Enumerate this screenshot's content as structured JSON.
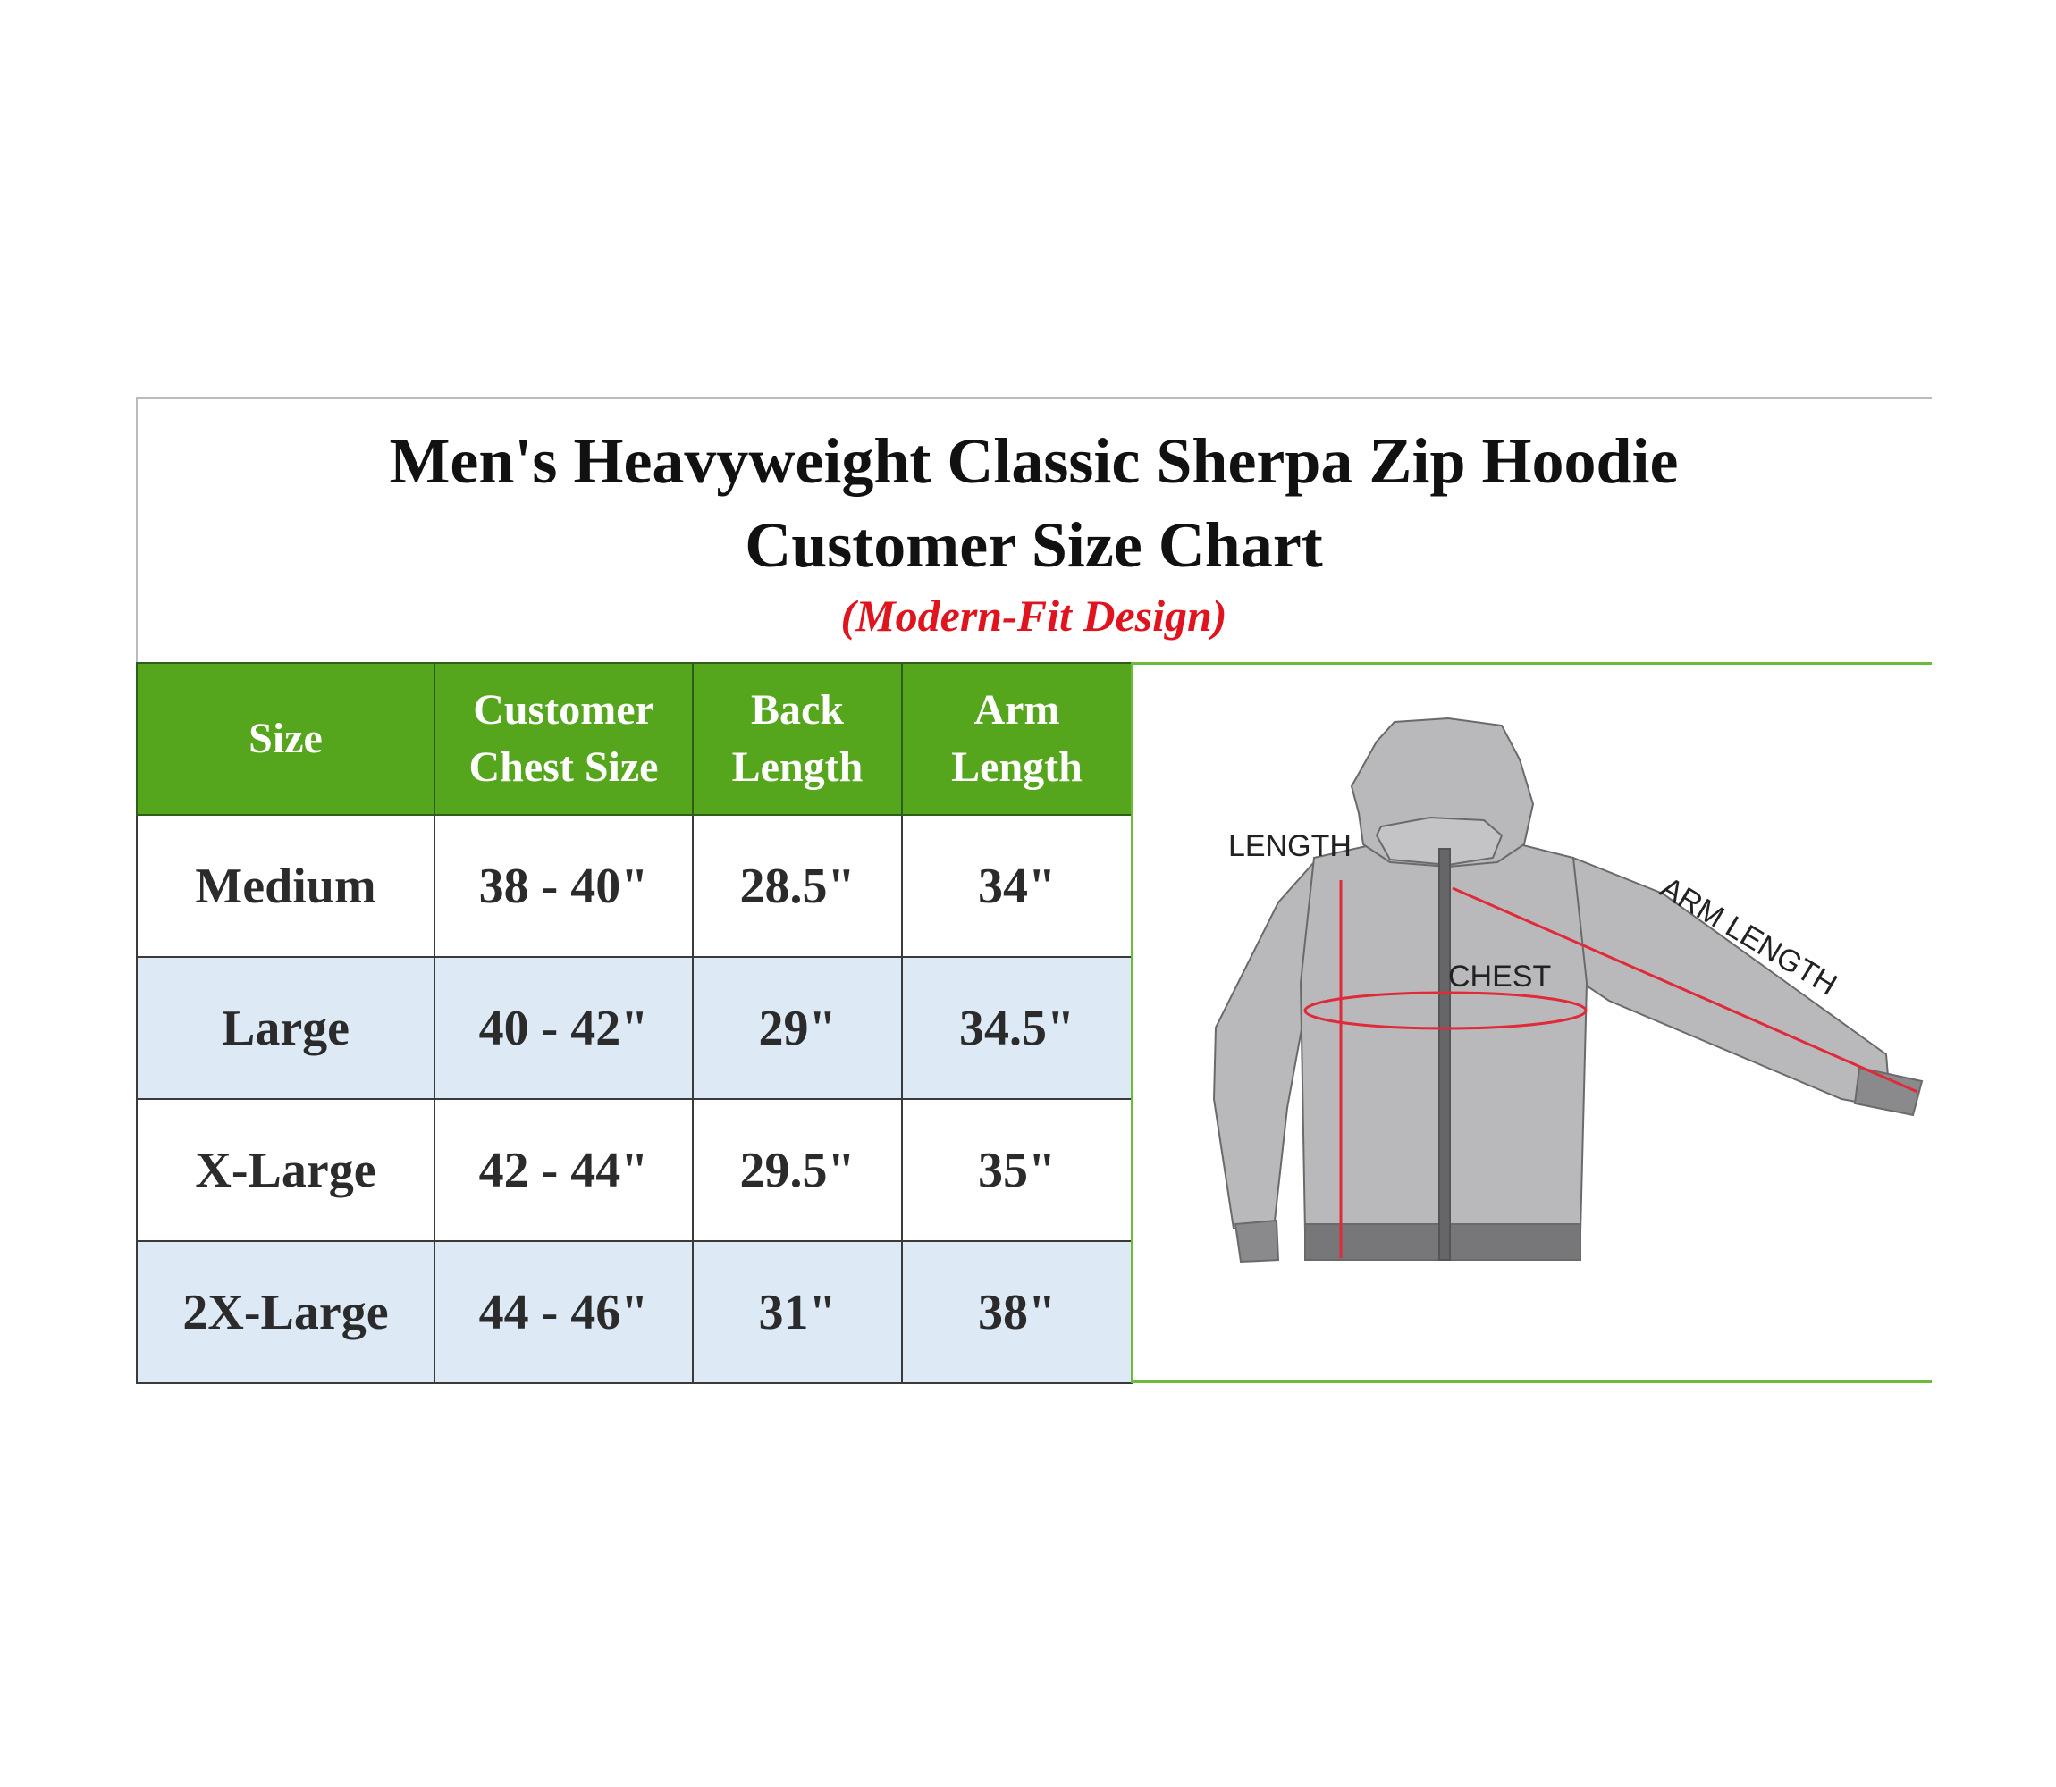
{
  "title_line1": "Men's Heavyweight Classic Sherpa Zip Hoodie",
  "title_line2": "Customer Size Chart",
  "subtitle": "(Modern-Fit Design)",
  "colors": {
    "header_green": "#55a51d",
    "alt_row": "#dde9f5",
    "subtitle_red": "#e0141e",
    "measure_red": "#e02a3a"
  },
  "table": {
    "headers": [
      {
        "line1": "Size",
        "line2": ""
      },
      {
        "line1": "Customer",
        "line2": "Chest Size"
      },
      {
        "line1": "Back",
        "line2": "Length"
      },
      {
        "line1": "Arm",
        "line2": "Length"
      }
    ],
    "rows": [
      [
        "Medium",
        "38 - 40\"",
        "28.5\"",
        "34\""
      ],
      [
        "Large",
        "40 - 42\"",
        "29\"",
        "34.5\""
      ],
      [
        "X-Large",
        "42 - 44\"",
        "29.5\"",
        "35\""
      ],
      [
        "2X-Large",
        "44 - 46\"",
        "31\"",
        "38\""
      ]
    ]
  },
  "diagram": {
    "length_label": "LENGTH",
    "chest_label": "CHEST",
    "arm_label": "ARM LENGTH"
  }
}
